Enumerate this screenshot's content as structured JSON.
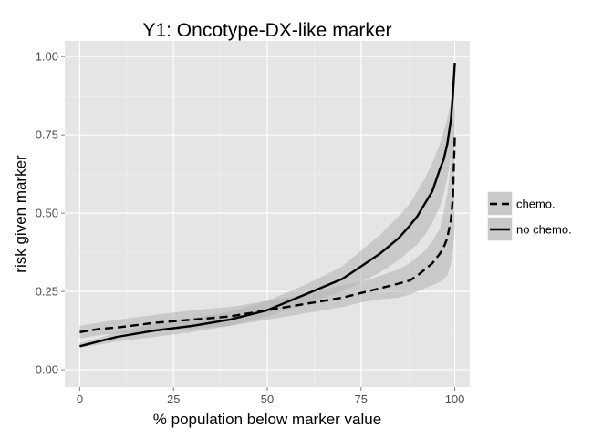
{
  "chart_data": {
    "type": "line",
    "title": "Y1: Oncotype-DX-like marker",
    "xlabel": "% population below marker value",
    "ylabel": "risk given marker",
    "xlim": [
      -4,
      104
    ],
    "ylim": [
      -0.055,
      1.05
    ],
    "x_ticks": [
      0,
      25,
      50,
      75,
      100
    ],
    "x_tick_labels": [
      "0",
      "25",
      "50",
      "75",
      "100"
    ],
    "y_ticks": [
      0,
      0.25,
      0.5,
      0.75,
      1
    ],
    "y_tick_labels": [
      "0.00",
      "0.25",
      "0.50",
      "0.75",
      "1.00"
    ],
    "grid": true,
    "legend_position": "right",
    "colors": {
      "panel": "#e5e5e5",
      "grid_major": "#ffffff",
      "grid_minor": "#f2f2f2",
      "ribbon": "#b3b3b3",
      "line": "#000000",
      "tick_text": "#4d4d4d"
    },
    "series": [
      {
        "name": "chemo.",
        "linetype": "dashed",
        "x": [
          0,
          5,
          10,
          20,
          30,
          40,
          50,
          60,
          70,
          75,
          80,
          85,
          88,
          90,
          92,
          94,
          96,
          97,
          98,
          99,
          99.5,
          100
        ],
        "y": [
          0.12,
          0.13,
          0.135,
          0.15,
          0.16,
          0.17,
          0.19,
          0.21,
          0.23,
          0.245,
          0.26,
          0.275,
          0.285,
          0.3,
          0.32,
          0.34,
          0.37,
          0.39,
          0.42,
          0.48,
          0.55,
          0.75
        ],
        "lower": [
          0.1,
          0.11,
          0.115,
          0.12,
          0.13,
          0.14,
          0.16,
          0.18,
          0.2,
          0.215,
          0.225,
          0.23,
          0.24,
          0.25,
          0.26,
          0.27,
          0.28,
          0.29,
          0.3,
          0.34,
          0.38,
          0.45
        ],
        "upper": [
          0.14,
          0.15,
          0.16,
          0.175,
          0.19,
          0.2,
          0.22,
          0.24,
          0.27,
          0.28,
          0.3,
          0.32,
          0.34,
          0.36,
          0.38,
          0.41,
          0.45,
          0.5,
          0.56,
          0.66,
          0.75,
          0.85
        ]
      },
      {
        "name": "no chemo.",
        "linetype": "solid",
        "x": [
          0,
          5,
          10,
          20,
          30,
          40,
          50,
          60,
          70,
          75,
          80,
          85,
          88,
          90,
          92,
          94,
          96,
          97,
          98,
          99,
          99.5,
          100
        ],
        "y": [
          0.075,
          0.09,
          0.105,
          0.125,
          0.14,
          0.16,
          0.19,
          0.24,
          0.29,
          0.33,
          0.37,
          0.42,
          0.46,
          0.49,
          0.53,
          0.57,
          0.64,
          0.67,
          0.72,
          0.8,
          0.88,
          0.98
        ],
        "lower": [
          0.07,
          0.08,
          0.09,
          0.105,
          0.12,
          0.14,
          0.17,
          0.21,
          0.25,
          0.28,
          0.31,
          0.35,
          0.38,
          0.4,
          0.43,
          0.47,
          0.52,
          0.56,
          0.61,
          0.68,
          0.74,
          0.8
        ],
        "upper": [
          0.085,
          0.1,
          0.12,
          0.145,
          0.165,
          0.185,
          0.22,
          0.27,
          0.33,
          0.38,
          0.43,
          0.49,
          0.53,
          0.57,
          0.61,
          0.66,
          0.72,
          0.76,
          0.8,
          0.86,
          0.93,
          0.99
        ]
      }
    ]
  }
}
